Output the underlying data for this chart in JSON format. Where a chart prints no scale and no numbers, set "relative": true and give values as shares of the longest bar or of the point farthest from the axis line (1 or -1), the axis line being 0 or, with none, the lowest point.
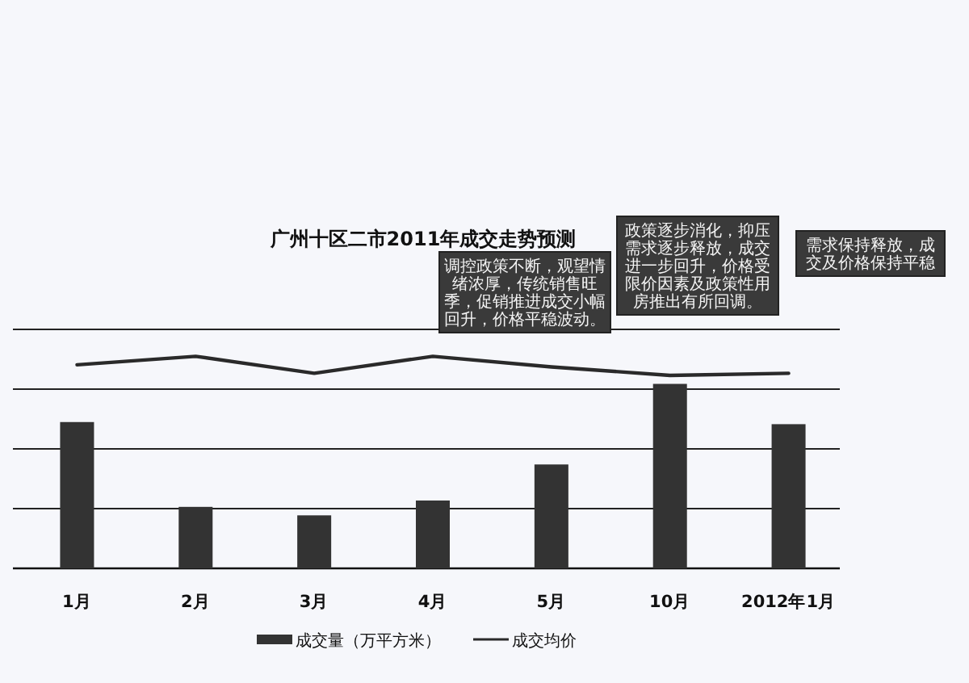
{
  "chart_data": {
    "type": "bar",
    "title": "广州十区二市2011年成交走势预测",
    "categories": [
      "1月",
      "2月",
      "3月",
      "4月",
      "5月",
      "10月",
      "2012年1月"
    ],
    "series": [
      {
        "name": "成交量（万平方米）",
        "color": "#333333",
        "values": [
          0.69,
          0.29,
          0.25,
          0.32,
          0.49,
          0.87,
          0.68
        ]
      },
      {
        "name": "成交均价",
        "type": "line",
        "color": "#2a2a2a",
        "values": [
          0.96,
          1.0,
          0.92,
          1.0,
          0.95,
          0.91,
          0.92
        ]
      }
    ],
    "relative": true,
    "grid": "y",
    "legend": "bottom",
    "annotations": [
      "调控政策不断，观望情绪浓厚，传统销售旺季，促销推进成交小幅回升，价格平稳波动。",
      "政策逐步消化，抑压需求逐步释放，成交进一步回升，价格受限价因素及政策性用房推出有所回调。",
      "需求保持释放，成交及价格保持平稳"
    ]
  }
}
